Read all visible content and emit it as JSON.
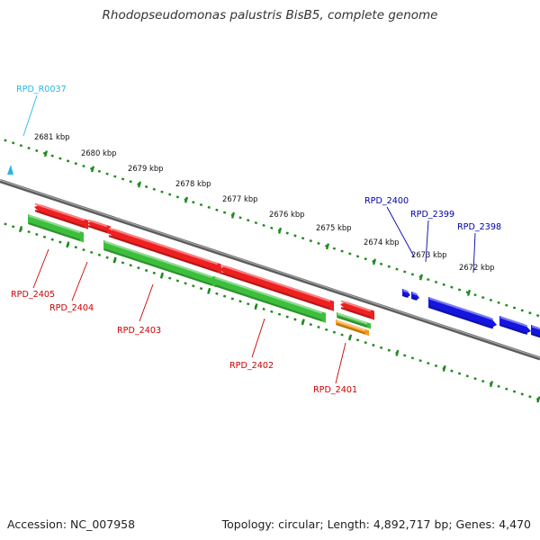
{
  "title": "Rhodopseudomonas palustris BisB5, complete genome",
  "footer": {
    "accession": "Accession: NC_007958",
    "summary": "Topology: circular; Length: 4,892,717 bp; Genes: 4,470"
  },
  "colors": {
    "tick": "#1f8a1f",
    "backbone": "#7a7a7a",
    "red_gene": "#ee2020",
    "red_label": "#cc0000",
    "green_gene": "#3dbf3d",
    "orange_gene": "#f39a1a",
    "blue_gene": "#1515e0",
    "blue_label": "#0000aa",
    "rna_label": "#29b6e6"
  },
  "scale": {
    "tick_labels": [
      "2681 kbp",
      "2680 kbp",
      "2679 kbp",
      "2678 kbp",
      "2677 kbp",
      "2676 kbp",
      "2675 kbp",
      "2674 kbp",
      "2673 kbp",
      "2672 kbp"
    ]
  },
  "genes": [
    {
      "label": "RPD_R0037",
      "color": "rna_label"
    },
    {
      "label": "RPD_2405",
      "color": "red_label"
    },
    {
      "label": "RPD_2404",
      "color": "red_label"
    },
    {
      "label": "RPD_2403",
      "color": "red_label"
    },
    {
      "label": "RPD_2402",
      "color": "red_label"
    },
    {
      "label": "RPD_2401",
      "color": "red_label"
    },
    {
      "label": "RPD_2400",
      "color": "blue_label"
    },
    {
      "label": "RPD_2399",
      "color": "blue_label"
    },
    {
      "label": "RPD_2398",
      "color": "blue_label"
    }
  ]
}
